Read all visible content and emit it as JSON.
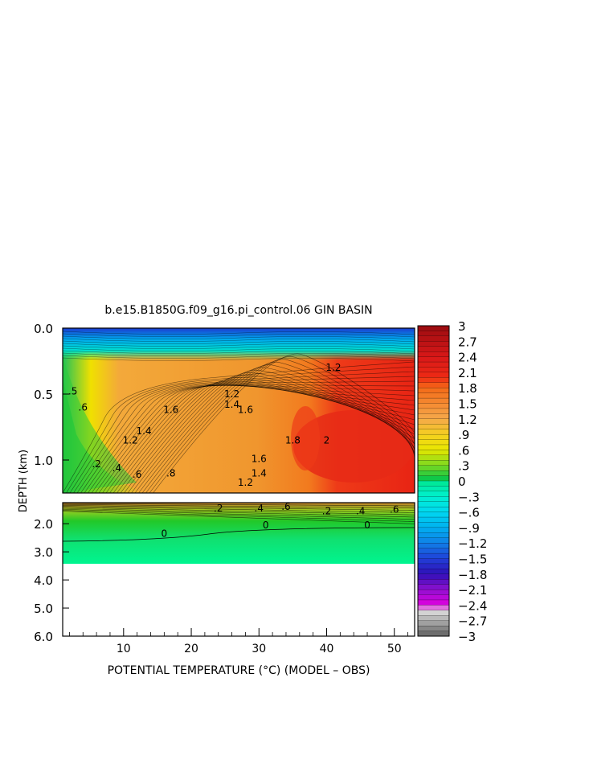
{
  "chart_data": {
    "type": "heatmap",
    "title": "b.e15.B1850G.f09_g16.pi_control.06 GIN BASIN",
    "xlabel": "POTENTIAL TEMPERATURE (°C) (MODEL – OBS)",
    "ylabel": "DEPTH (km)",
    "x_ticks": [
      "10",
      "20",
      "30",
      "40",
      "50"
    ],
    "x_range": [
      1,
      53
    ],
    "upper_panel": {
      "y_range": [
        0.0,
        1.25
      ],
      "y_ticks": [
        "0.0",
        "0.5",
        "1.0"
      ]
    },
    "lower_panel": {
      "y_range": [
        1.25,
        6.0
      ],
      "y_ticks": [
        "2.0",
        "3.0",
        "4.0",
        "5.0",
        "6.0"
      ]
    },
    "colorbar": {
      "min": -3,
      "max": 3,
      "step": 0.1,
      "tick_labels": [
        "3",
        "2.7",
        "2.4",
        "2.1",
        "1.8",
        "1.5",
        "1.2",
        ".9",
        ".6",
        ".3",
        "0",
        "−.3",
        "−.6",
        "−.9",
        "−1.2",
        "−1.5",
        "−1.8",
        "−2.1",
        "−2.4",
        "−2.7",
        "−3"
      ]
    },
    "contour_labels_upper": [
      {
        "text": "1.6",
        "x": 17,
        "y": 0.62
      },
      {
        "text": "1.4",
        "x": 13,
        "y": 0.78
      },
      {
        "text": "1.2",
        "x": 11,
        "y": 0.85
      },
      {
        "text": "1.4",
        "x": 26,
        "y": 0.58
      },
      {
        "text": "1.2",
        "x": 26,
        "y": 0.5
      },
      {
        "text": "1.6",
        "x": 28,
        "y": 0.62
      },
      {
        "text": "1.8",
        "x": 35,
        "y": 0.85
      },
      {
        "text": "2",
        "x": 40,
        "y": 0.85
      },
      {
        "text": "1.6",
        "x": 30,
        "y": 0.99
      },
      {
        "text": "1.4",
        "x": 30,
        "y": 1.1
      },
      {
        "text": "1.2",
        "x": 28,
        "y": 1.17
      },
      {
        "text": ".8",
        "x": 17,
        "y": 1.1
      },
      {
        "text": ".6",
        "x": 12,
        "y": 1.11
      },
      {
        "text": ".4",
        "x": 9,
        "y": 1.06
      },
      {
        "text": ".2",
        "x": 6,
        "y": 1.03
      },
      {
        "text": ".6",
        "x": 4,
        "y": 0.6
      },
      {
        "text": ".5",
        "x": 2.5,
        "y": 0.48
      },
      {
        "text": "1.2",
        "x": 41,
        "y": 0.3
      }
    ],
    "contour_labels_lower": [
      {
        "text": "0",
        "x": 16,
        "y": 2.35
      },
      {
        "text": "0",
        "x": 31,
        "y": 2.05
      },
      {
        "text": "0",
        "x": 46,
        "y": 2.05
      },
      {
        "text": ".2",
        "x": 24,
        "y": 1.45
      },
      {
        "text": ".4",
        "x": 30,
        "y": 1.45
      },
      {
        "text": ".6",
        "x": 34,
        "y": 1.4
      },
      {
        "text": ".2",
        "x": 40,
        "y": 1.55
      },
      {
        "text": ".4",
        "x": 45,
        "y": 1.55
      },
      {
        "text": ".6",
        "x": 50,
        "y": 1.5
      }
    ]
  }
}
